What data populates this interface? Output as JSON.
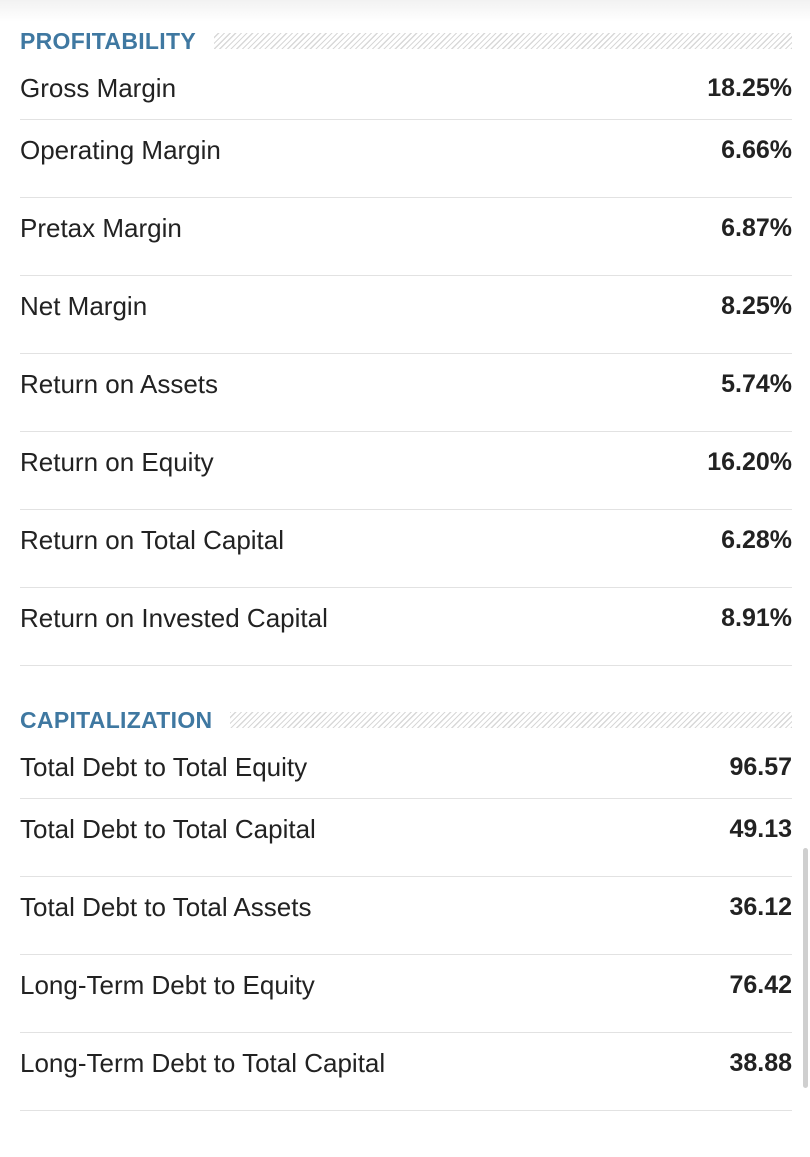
{
  "sections": [
    {
      "title": "PROFITABILITY",
      "rows": [
        {
          "label": "Gross Margin",
          "value": "18.25%"
        },
        {
          "label": "Operating Margin",
          "value": "6.66%"
        },
        {
          "label": "Pretax Margin",
          "value": "6.87%"
        },
        {
          "label": "Net Margin",
          "value": "8.25%"
        },
        {
          "label": "Return on Assets",
          "value": "5.74%"
        },
        {
          "label": "Return on Equity",
          "value": "16.20%"
        },
        {
          "label": "Return on Total Capital",
          "value": "6.28%"
        },
        {
          "label": "Return on Invested Capital",
          "value": "8.91%"
        }
      ]
    },
    {
      "title": "CAPITALIZATION",
      "rows": [
        {
          "label": "Total Debt to Total Equity",
          "value": "96.57"
        },
        {
          "label": "Total Debt to Total Capital",
          "value": "49.13"
        },
        {
          "label": "Total Debt to Total Assets",
          "value": "36.12"
        },
        {
          "label": "Long-Term Debt to Equity",
          "value": "76.42"
        },
        {
          "label": "Long-Term Debt to Total Capital",
          "value": "38.88"
        }
      ]
    }
  ]
}
